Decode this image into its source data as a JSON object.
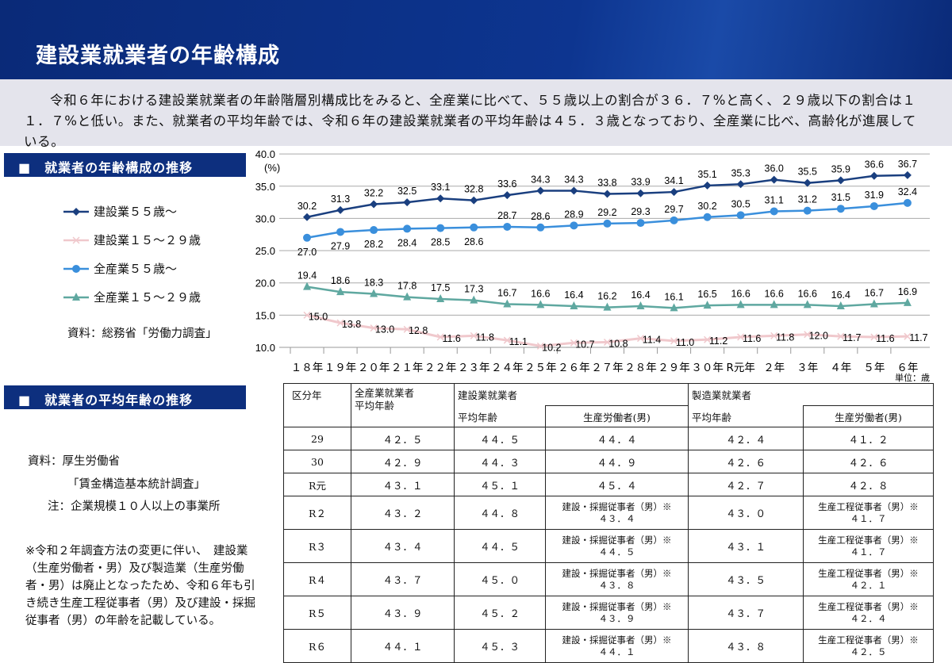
{
  "title": "建設業就業者の年齢構成",
  "description": "令和６年における建設業就業者の年齢階層別構成比をみると、全産業に比べて、５５歳以上の割合が３６．７%と高く、２９歳以下の割合は１１．７%と低い。また、就業者の平均年齢では、令和６年の建設業就業者の平均年齢は４５．３歳となっており、全産業に比べ、高齢化が進展している。",
  "section1": "■　就業者の年齢構成の推移",
  "section2": "■　就業者の平均年齢の推移",
  "source1": "資料：総務省「労働力調査」",
  "source2": [
    "資料：厚生労働省",
    "「賃金構造基本統計調査」",
    "注：企業規模１０人以上の事業所"
  ],
  "footnote": "※令和２年調査方法の変更に伴い、　建設業（生産労働者・男）及び製造業（生産労働者・男）は廃止となったため、令和６年も引き続き生産工程従事者（男）及び建設・採掘従事者（男）の年齢を記載している。",
  "chart_data": {
    "type": "line",
    "ylabel": "(%)",
    "unit_note": "単位：歳",
    "ylim": [
      10,
      40
    ],
    "yticks": [
      "10.0",
      "15.0",
      "20.0",
      "25.0",
      "30.0",
      "35.0",
      "40.0"
    ],
    "categories": [
      "１８年",
      "１９年",
      "２０年",
      "２１年",
      "２２年",
      "２３年",
      "２４年",
      "２５年",
      "２６年",
      "２７年",
      "２８年",
      "２９年",
      "３０年",
      "R元年",
      "２年",
      "３年",
      "４年",
      "５年",
      "６年"
    ],
    "series": [
      {
        "name": "建設業５５歳～",
        "color": "#1a3f7f",
        "marker": "diamond",
        "values": [
          30.2,
          31.3,
          32.2,
          32.5,
          33.1,
          32.8,
          33.6,
          34.3,
          34.3,
          33.8,
          33.9,
          34.1,
          35.1,
          35.3,
          36.0,
          35.5,
          35.9,
          36.6,
          36.7
        ]
      },
      {
        "name": "建設業１５～２９歳",
        "color": "#f0c8cc",
        "marker": "x",
        "values": [
          15.0,
          13.8,
          13.0,
          12.8,
          11.6,
          11.8,
          11.1,
          10.2,
          10.7,
          10.8,
          11.4,
          11.0,
          11.2,
          11.6,
          11.8,
          12.0,
          11.7,
          11.6,
          11.7
        ]
      },
      {
        "name": "全産業５５歳～",
        "color": "#3a8fdc",
        "marker": "circle",
        "values": [
          27.0,
          27.9,
          28.2,
          28.4,
          28.5,
          28.6,
          28.7,
          28.6,
          28.9,
          29.2,
          29.3,
          29.7,
          30.2,
          30.5,
          31.1,
          31.2,
          31.5,
          31.9,
          32.4
        ]
      },
      {
        "name": "全産業１５～２９歳",
        "color": "#5fa8a0",
        "marker": "triangle",
        "values": [
          19.4,
          18.6,
          18.3,
          17.8,
          17.5,
          17.3,
          16.7,
          16.6,
          16.4,
          16.2,
          16.4,
          16.1,
          16.5,
          16.6,
          16.6,
          16.6,
          16.4,
          16.7,
          16.9
        ]
      }
    ]
  },
  "table": {
    "h": {
      "c0": "区分年",
      "c1": "全産業就業者\n平均年齢",
      "c2": "建設業就業者",
      "c4": "製造業就業者",
      "avg": "平均年齢",
      "prod": "生産労働者(男)"
    },
    "rows": [
      [
        "29",
        "４２．５",
        "４４．５",
        "４４．４",
        "",
        "４２．４",
        "４１．２",
        ""
      ],
      [
        "30",
        "４２．９",
        "４４．３",
        "４４．９",
        "",
        "４２．６",
        "４２．６",
        ""
      ],
      [
        "R元",
        "４３．１",
        "４５．１",
        "４５．４",
        "",
        "４２．７",
        "４２．８",
        ""
      ],
      [
        "R２",
        "４３．２",
        "４４．８",
        "４３．４",
        "建設・採掘従事者（男）※",
        "４３．０",
        "４１．７",
        "生産工程従事者（男）※"
      ],
      [
        "R３",
        "４３．４",
        "４４．５",
        "４４．５",
        "建設・採掘従事者（男）※",
        "４３．１",
        "４１．７",
        "生産工程従事者（男）※"
      ],
      [
        "R４",
        "４３．７",
        "４５．０",
        "４３．８",
        "建設・採掘従事者（男）※",
        "４３．５",
        "４２．１",
        "生産工程従事者（男）※"
      ],
      [
        "R５",
        "４３．９",
        "４５．２",
        "４３．９",
        "建設・採掘従事者（男）※",
        "４３．７",
        "４２．４",
        "生産工程従事者（男）※"
      ],
      [
        "R６",
        "４４．１",
        "４５．３",
        "４４．１",
        "建設・採掘従事者（男）※",
        "４３．８",
        "４２．５",
        "生産工程従事者（男）※"
      ]
    ]
  }
}
